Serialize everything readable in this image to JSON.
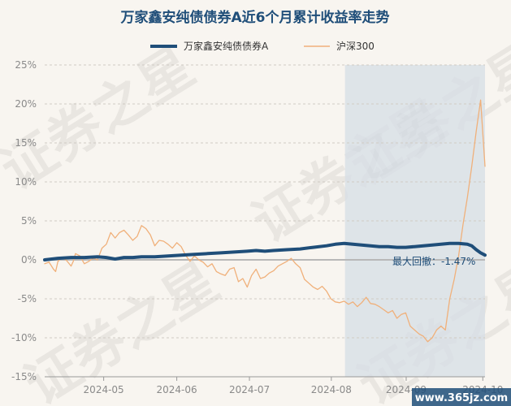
{
  "chart_data": {
    "type": "line",
    "title": "万家鑫安纯债债券A近6个月累计收益率走势",
    "x_tick_labels": [
      "2024-05",
      "2024-06",
      "2024-07",
      "2024-08",
      "2024-09",
      "2024-10"
    ],
    "x_range": [
      0,
      100
    ],
    "x_tick_positions": [
      13.4,
      30.0,
      46.5,
      65.1,
      82.1,
      99.5
    ],
    "ylim": [
      -15,
      25
    ],
    "y_ticks": [
      -15,
      -10,
      -5,
      0,
      5,
      10,
      15,
      20,
      25
    ],
    "y_tick_format": "percent",
    "grid": "horizontal dashed",
    "legend_position": "top",
    "shaded_region_x": [
      68.2,
      100
    ],
    "annotation": "最大回撤：-1.47%",
    "series": [
      {
        "name": "万家鑫安纯债债券A",
        "color": "#1f4e79",
        "x": [
          0,
          3,
          6,
          9,
          12,
          14,
          16,
          18,
          20,
          22,
          25,
          28,
          31,
          34,
          37,
          40,
          43,
          46,
          48,
          50,
          52,
          55,
          58,
          61,
          64,
          66,
          68,
          70,
          72,
          74,
          76,
          78,
          80,
          82,
          84,
          86,
          88,
          90,
          92,
          94,
          96,
          97,
          98,
          99,
          100
        ],
        "y": [
          0.0,
          0.2,
          0.3,
          0.3,
          0.4,
          0.3,
          0.1,
          0.3,
          0.3,
          0.4,
          0.4,
          0.5,
          0.6,
          0.7,
          0.8,
          0.9,
          1.0,
          1.1,
          1.2,
          1.1,
          1.2,
          1.3,
          1.4,
          1.6,
          1.8,
          2.0,
          2.1,
          2.0,
          1.9,
          1.8,
          1.7,
          1.7,
          1.6,
          1.6,
          1.7,
          1.8,
          1.9,
          2.0,
          2.1,
          2.1,
          2.0,
          1.8,
          1.3,
          0.9,
          0.6
        ]
      },
      {
        "name": "沪深300",
        "color": "#f0b07a",
        "x": [
          0,
          1,
          2,
          2.5,
          3,
          4,
          5,
          6,
          6.5,
          7,
          8,
          9,
          10,
          11,
          12,
          13,
          14,
          15,
          16,
          17,
          18,
          19,
          20,
          21,
          22,
          23,
          24,
          25,
          26,
          27,
          28,
          29,
          30,
          31,
          32,
          33,
          34,
          35,
          36,
          37,
          38,
          39,
          40,
          41,
          42,
          43,
          44,
          45,
          46,
          47,
          48,
          49,
          50,
          51,
          52,
          53,
          54,
          55,
          56,
          57,
          58,
          59,
          60,
          61,
          62,
          63,
          64,
          65,
          66,
          67,
          68,
          69,
          70,
          71,
          72,
          73,
          74,
          75,
          76,
          77,
          78,
          79,
          80,
          81,
          82,
          83,
          84,
          85,
          86,
          87,
          88,
          89,
          90,
          91,
          92,
          93,
          94,
          95,
          96,
          97,
          98,
          99,
          100
        ],
        "y": [
          -0.5,
          -0.3,
          -1.2,
          -1.5,
          -0.2,
          0.3,
          -0.1,
          -0.8,
          -0.2,
          0.8,
          0.5,
          -0.5,
          -0.2,
          0.2,
          0.0,
          1.5,
          2.0,
          3.5,
          2.8,
          3.5,
          3.8,
          3.2,
          2.5,
          3.0,
          4.4,
          4.0,
          3.2,
          1.8,
          2.5,
          2.4,
          2.0,
          1.5,
          2.2,
          1.7,
          0.6,
          -0.2,
          0.5,
          0.0,
          -0.3,
          -0.9,
          -0.5,
          -1.5,
          -1.8,
          -2.0,
          -1.2,
          -1.0,
          -2.8,
          -2.4,
          -3.5,
          -2.0,
          -1.2,
          -2.4,
          -2.2,
          -1.7,
          -1.4,
          -0.8,
          -0.5,
          -0.2,
          0.2,
          -0.5,
          -1.0,
          -2.5,
          -3.0,
          -3.5,
          -3.8,
          -3.4,
          -4.0,
          -5.0,
          -5.4,
          -5.5,
          -5.3,
          -5.7,
          -5.4,
          -6.0,
          -5.5,
          -4.8,
          -5.6,
          -5.7,
          -6.0,
          -6.4,
          -6.8,
          -6.5,
          -7.5,
          -7.0,
          -6.8,
          -8.5,
          -9.0,
          -9.5,
          -9.8,
          -10.5,
          -10.0,
          -9.0,
          -8.5,
          -9.0,
          -5.0,
          -2.5,
          0.5,
          4.5,
          8.0,
          12.0,
          16.5,
          20.5,
          12.0
        ]
      }
    ]
  },
  "watermark": {
    "text": "证券之星",
    "site": "www.365jz.com"
  }
}
